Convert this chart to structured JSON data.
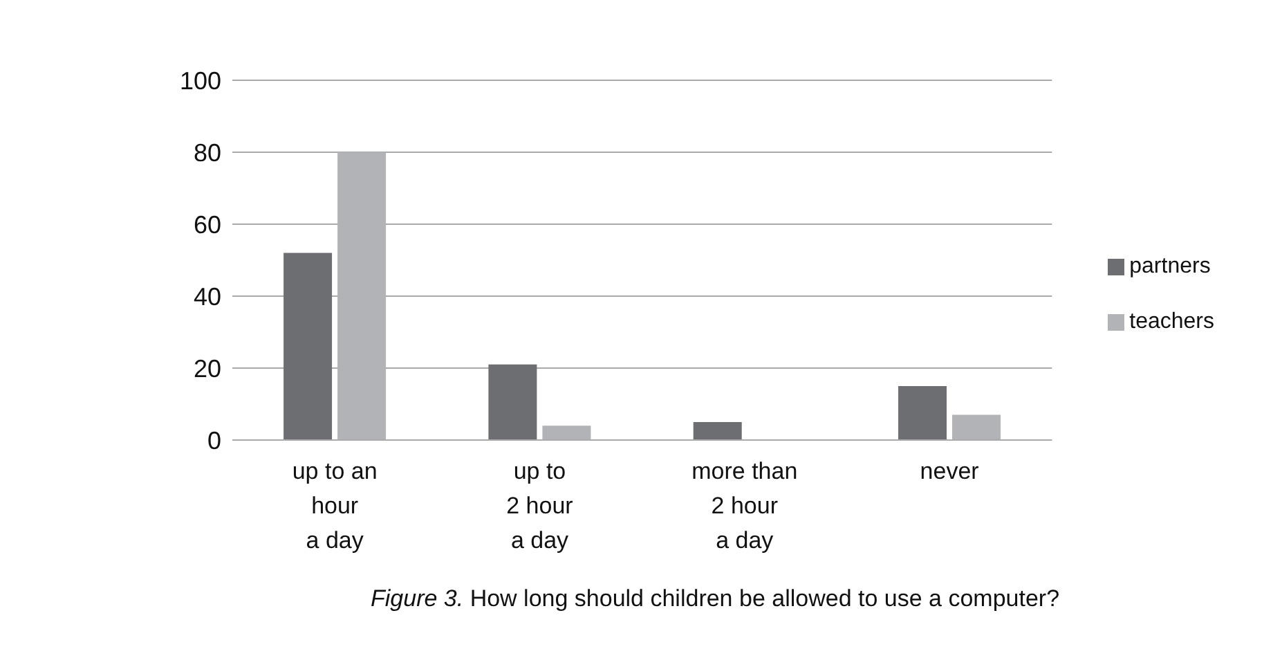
{
  "chart_data": {
    "type": "bar",
    "title": "Figure 3. How long should children be allowed to use a computer?",
    "categories": [
      "up to an hour a day",
      "up to 2 hour a day",
      "more than 2 hour a day",
      "never"
    ],
    "series": [
      {
        "name": "partners",
        "color": "#6d6e71",
        "values": [
          52,
          21,
          5,
          15
        ]
      },
      {
        "name": "teachers",
        "color": "#b1b3b6",
        "values": [
          80,
          4,
          0,
          7
        ]
      }
    ],
    "ylim": [
      0,
      100
    ],
    "yticks": [
      0,
      20,
      40,
      60,
      80,
      100
    ],
    "grid": "y",
    "legend": "right"
  }
}
